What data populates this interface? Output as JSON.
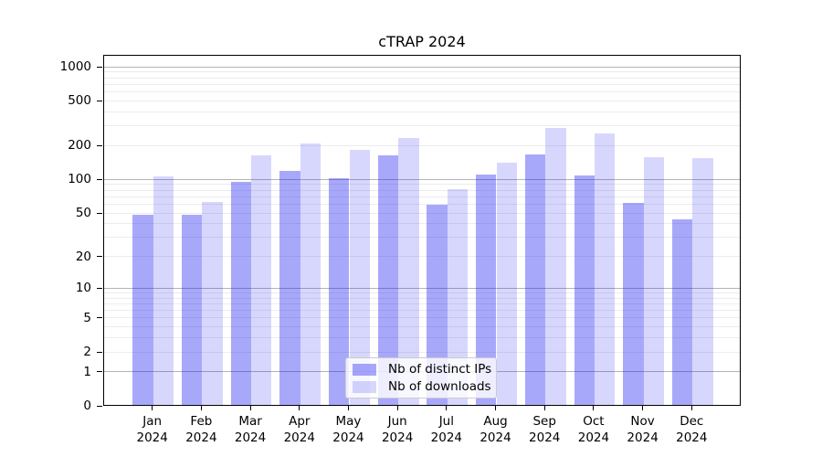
{
  "chart_data": {
    "type": "bar",
    "title": "cTRAP 2024",
    "xlabel": "",
    "ylabel": "",
    "yscale": "log1p (0 baseline, then logarithmic)",
    "ylim": [
      0,
      1280
    ],
    "yticks": [
      0,
      1,
      2,
      5,
      10,
      20,
      50,
      100,
      200,
      500,
      1000
    ],
    "grid": true,
    "categories": [
      "Jan",
      "Feb",
      "Mar",
      "Apr",
      "May",
      "Jun",
      "Jul",
      "Aug",
      "Sep",
      "Oct",
      "Nov",
      "Dec"
    ],
    "year_label": "2024",
    "series": [
      {
        "name": "Nb of distinct IPs",
        "color": "rgba(20,20,245,0.37)",
        "values": [
          47,
          47,
          94,
          118,
          100,
          161,
          58,
          108,
          164,
          107,
          60,
          43
        ]
      },
      {
        "name": "Nb of downloads",
        "color": "rgba(20,20,245,0.17)",
        "values": [
          105,
          62,
          160,
          204,
          180,
          232,
          80,
          138,
          285,
          252,
          154,
          153
        ]
      }
    ],
    "legend_position": "lower center",
    "colors": {
      "major_grid": "#b4b4b4",
      "minor_grid": "#ececec",
      "spine": "#000000",
      "text": "#000000",
      "background": "#ffffff"
    }
  }
}
